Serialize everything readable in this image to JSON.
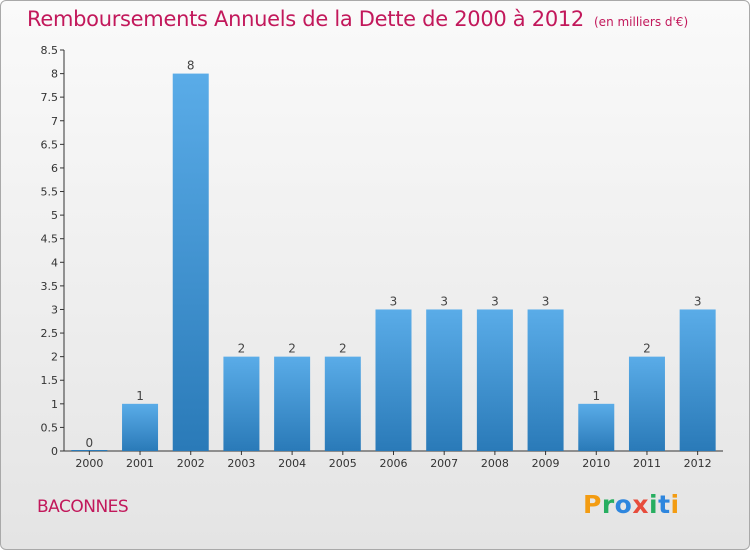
{
  "header": {
    "title": "Remboursements Annuels de la Dette de 2000 à 2012",
    "subtitle": "(en milliers d'€)"
  },
  "commune": "BACONNES",
  "logo": {
    "letters": [
      "P",
      "r",
      "o",
      "x",
      "i",
      "t",
      "i"
    ],
    "colors": [
      "#f39c12",
      "#27ae60",
      "#2e86de",
      "#e74c3c",
      "#27ae60",
      "#2e86de",
      "#f39c12"
    ]
  },
  "chart_data": {
    "type": "bar",
    "categories": [
      "2000",
      "2001",
      "2002",
      "2003",
      "2004",
      "2005",
      "2006",
      "2007",
      "2008",
      "2009",
      "2010",
      "2011",
      "2012"
    ],
    "values": [
      0,
      1,
      8,
      2,
      2,
      2,
      3,
      3,
      3,
      3,
      1,
      2,
      3
    ],
    "data_labels": [
      "0",
      "1",
      "8",
      "2",
      "2",
      "2",
      "3",
      "3",
      "3",
      "3",
      "1",
      "2",
      "3"
    ],
    "ylim": [
      0,
      8.5
    ],
    "yticks": [
      "0",
      "0.5",
      "1",
      "1.5",
      "2",
      "2.5",
      "3",
      "3.5",
      "4",
      "4.5",
      "5",
      "5.5",
      "6",
      "6.5",
      "7",
      "7.5",
      "8",
      "8.5"
    ],
    "ytick_values": [
      0,
      0.5,
      1,
      1.5,
      2,
      2.5,
      3,
      3.5,
      4,
      4.5,
      5,
      5.5,
      6,
      6.5,
      7,
      7.5,
      8,
      8.5
    ],
    "grid": false,
    "bar_color_top": "#5aace8",
    "bar_color_bottom": "#2a7ab8"
  }
}
